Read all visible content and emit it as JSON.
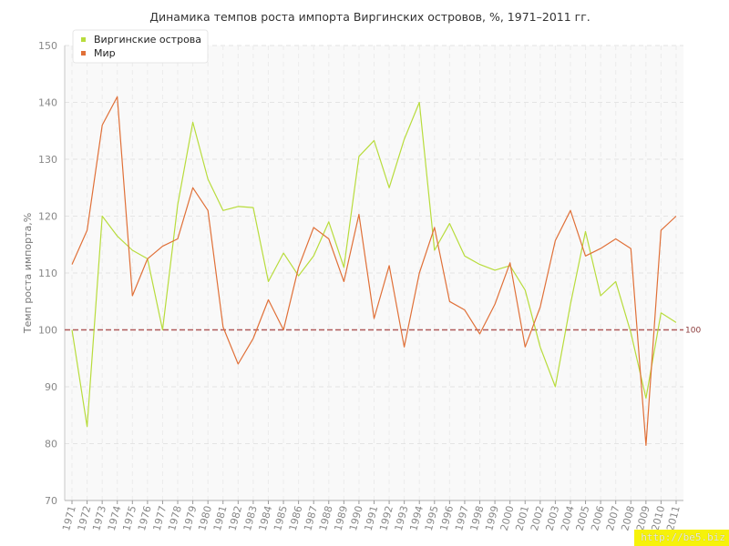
{
  "chart_data": {
    "type": "line",
    "title": "Динамика темпов роста импорта Виргинских островов, %, 1971–2011 гг.",
    "ylabel": "Темп роста импорта,%",
    "ylim": [
      70,
      150
    ],
    "yticks": [
      70,
      80,
      90,
      100,
      110,
      120,
      130,
      140,
      150
    ],
    "grid": true,
    "legend": "top-left",
    "reference_line": {
      "value": 100,
      "label": "100",
      "color": "#b05a5a"
    },
    "x": [
      "1971",
      "1972",
      "1973",
      "1974",
      "1975",
      "1976",
      "1977",
      "1978",
      "1979",
      "1980",
      "1981",
      "1982",
      "1983",
      "1984",
      "1985",
      "1986",
      "1987",
      "1988",
      "1989",
      "1990",
      "1991",
      "1992",
      "1993",
      "1994",
      "1995",
      "1996",
      "1997",
      "1998",
      "1999",
      "2000",
      "2001",
      "2002",
      "2003",
      "2004",
      "2005",
      "2006",
      "2007",
      "2008",
      "2009",
      "2010",
      "2011"
    ],
    "series": [
      {
        "name": "Виргинские острова",
        "color": "#b8dc3c",
        "values": [
          100,
          83,
          120,
          116.5,
          114,
          112.5,
          100,
          122,
          136.5,
          126.5,
          121,
          121.7,
          121.5,
          108.5,
          113.5,
          109.5,
          113,
          119,
          111,
          130.5,
          133.3,
          125,
          133.5,
          140,
          114,
          118.7,
          113,
          111.5,
          110.5,
          111.3,
          107,
          97,
          90,
          104.5,
          117.3,
          106,
          108.5,
          99.5,
          88,
          103,
          101.3
        ]
      },
      {
        "name": "Мир",
        "color": "#e07038",
        "values": [
          111.5,
          117.5,
          136,
          141,
          106,
          112.5,
          114.7,
          116,
          125,
          121,
          100.5,
          94,
          98.5,
          105.3,
          100,
          111,
          118,
          116,
          108.5,
          120.3,
          102,
          111.3,
          97,
          110,
          118,
          105,
          103.5,
          99.3,
          104.5,
          111.8,
          97,
          104,
          115.7,
          121,
          113,
          114.3,
          116,
          114.3,
          79.7,
          117.5,
          120
        ]
      }
    ]
  },
  "watermark": "http://be5.biz"
}
